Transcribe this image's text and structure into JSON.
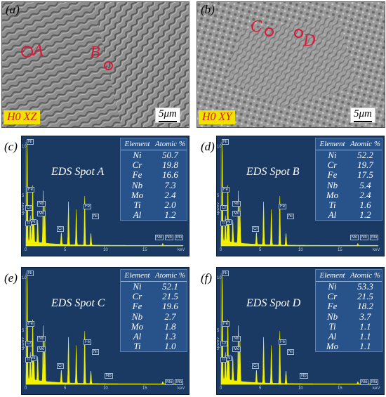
{
  "panels_sem": [
    {
      "label": "(a)",
      "badge": "H0 XZ",
      "scale": "5μm",
      "spots": [
        "A",
        "B"
      ]
    },
    {
      "label": "(b)",
      "badge": "H0 XY",
      "scale": "5μm",
      "spots": [
        "C",
        "D"
      ]
    }
  ],
  "eds": [
    {
      "label": "(c)",
      "title": "EDS Spot A",
      "header": [
        "Element",
        "Atomic %"
      ],
      "rows": [
        [
          "Ni",
          "50.7"
        ],
        [
          "Cr",
          "19.8"
        ],
        [
          "Fe",
          "16.6"
        ],
        [
          "Nb",
          "7.3"
        ],
        [
          "Mo",
          "2.4"
        ],
        [
          "Ti",
          "2.0"
        ],
        [
          "Al",
          "1.2"
        ]
      ],
      "peaks": [
        "Ni",
        "Fe",
        "Cr",
        "Al",
        "Ti",
        "Nb",
        "Mo",
        "Cr",
        "Fe",
        "Ni",
        "Mo",
        "Nb",
        "Mo"
      ]
    },
    {
      "label": "(d)",
      "title": "EDS Spot B",
      "header": [
        "Element",
        "Atomic %"
      ],
      "rows": [
        [
          "Ni",
          "52.2"
        ],
        [
          "Cr",
          "19.7"
        ],
        [
          "Fe",
          "17.5"
        ],
        [
          "Nb",
          "5.4"
        ],
        [
          "Mo",
          "2.4"
        ],
        [
          "Ti",
          "1.6"
        ],
        [
          "Al",
          "1.2"
        ]
      ],
      "peaks": [
        "Ni",
        "Fe",
        "Cr",
        "Al",
        "Ti",
        "Nb",
        "Mo",
        "Cr",
        "Fe",
        "Ni",
        "Mo",
        "Nb",
        "Mo"
      ]
    },
    {
      "label": "(e)",
      "title": "EDS Spot C",
      "header": [
        "Element",
        "Atomic %"
      ],
      "rows": [
        [
          "Ni",
          "52.1"
        ],
        [
          "Cr",
          "21.5"
        ],
        [
          "Fe",
          "19.6"
        ],
        [
          "Nb",
          "2.7"
        ],
        [
          "Mo",
          "1.8"
        ],
        [
          "Al",
          "1.3"
        ],
        [
          "Ti",
          "1.0"
        ]
      ],
      "peaks": [
        "Ni",
        "Fe",
        "Cr",
        "Al",
        "Ti",
        "Nb",
        "Mo",
        "Cr",
        "Fe",
        "Ni",
        "Nb",
        "Mo",
        "Mo"
      ]
    },
    {
      "label": "(f)",
      "title": "EDS Spot D",
      "header": [
        "Element",
        "Atomic %"
      ],
      "rows": [
        [
          "Ni",
          "53.3"
        ],
        [
          "Cr",
          "21.5"
        ],
        [
          "Fe",
          "18.2"
        ],
        [
          "Nb",
          "3.7"
        ],
        [
          "Ti",
          "1.1"
        ],
        [
          "Al",
          "1.1"
        ],
        [
          "Mo",
          "1.1"
        ]
      ],
      "peaks": [
        "Ni",
        "Fe",
        "Cr",
        "Al",
        "Ti",
        "Nb",
        "Mo",
        "Cr",
        "Fe",
        "Ni",
        "Nb",
        "Mo",
        "Mo"
      ]
    }
  ],
  "axis": {
    "xunit": "keV",
    "yunit": "cps/eV",
    "xticks": [
      "0",
      "5",
      "10",
      "15"
    ],
    "yticks": [
      "10",
      "5"
    ]
  },
  "colors": {
    "spectrum": "#f2f200",
    "bg": "#1a3a63",
    "marker": "#d7193a",
    "badge": "#f2e200"
  }
}
